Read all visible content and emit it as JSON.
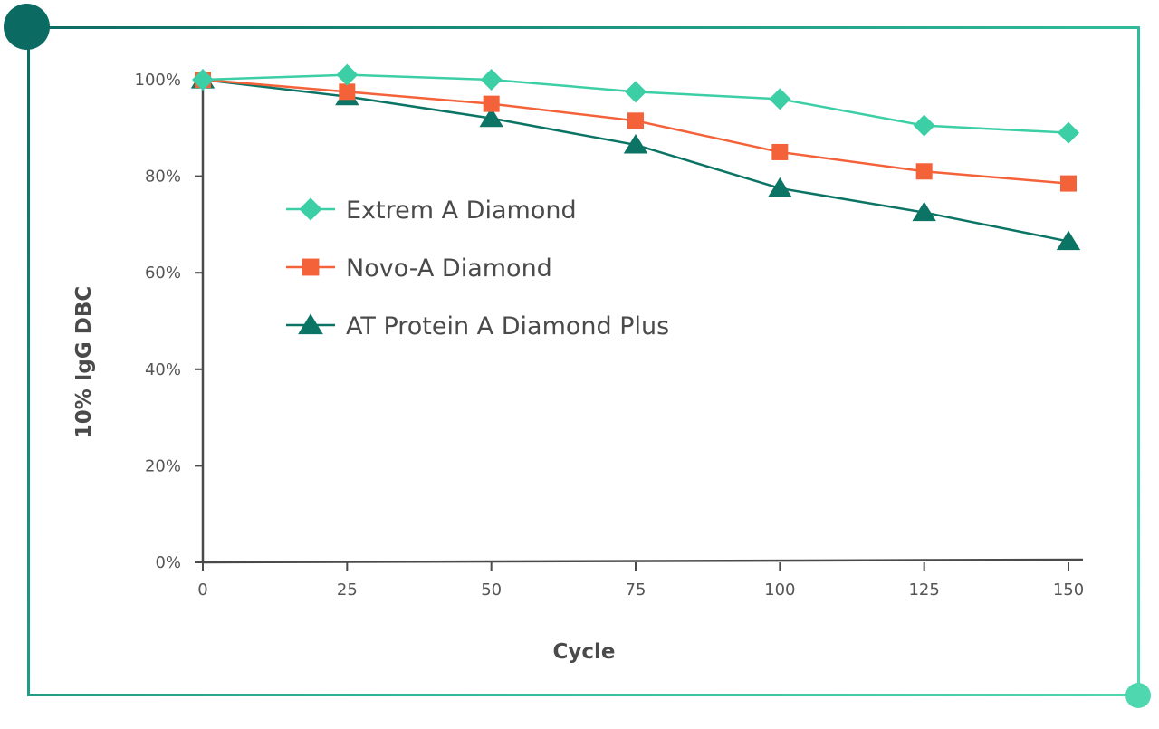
{
  "chart_data": {
    "type": "line",
    "xlabel": "Cycle",
    "ylabel": "10% IgG DBC",
    "x": [
      0,
      25,
      50,
      75,
      100,
      125,
      150
    ],
    "xticks": [
      "0",
      "25",
      "50",
      "75",
      "100",
      "125",
      "150"
    ],
    "yticks": [
      "0%",
      "20%",
      "40%",
      "60%",
      "80%",
      "100%"
    ],
    "ytick_values": [
      0,
      20,
      40,
      60,
      80,
      100
    ],
    "xlim": [
      0,
      150
    ],
    "ylim": [
      0,
      100
    ],
    "grid": false,
    "legend_position": "upper-left",
    "series": [
      {
        "name": "Extrem A Diamond",
        "marker": "diamond",
        "color": "#3ccfa6",
        "values": [
          100,
          101,
          100,
          97.5,
          96,
          90.5,
          89
        ]
      },
      {
        "name": "Novo-A Diamond",
        "marker": "square",
        "color": "#f4623a",
        "values": [
          100,
          97.5,
          95,
          91.5,
          85,
          81,
          78.5
        ]
      },
      {
        "name": "AT Protein A Diamond Plus",
        "marker": "triangle",
        "color": "#0c7465",
        "values": [
          100,
          96.5,
          92,
          86.5,
          77.5,
          72.5,
          66.5
        ]
      }
    ]
  }
}
